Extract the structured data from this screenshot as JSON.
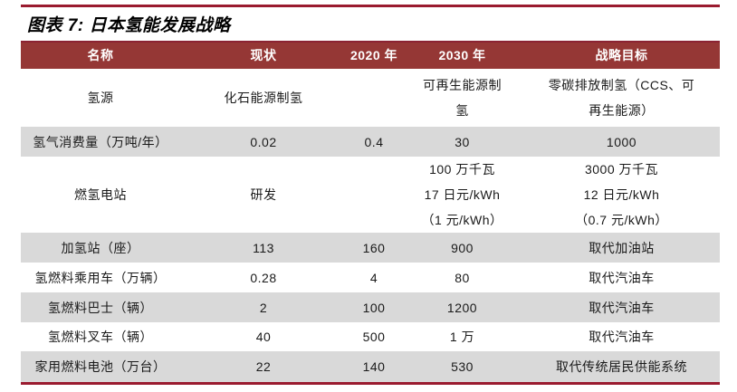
{
  "page": {
    "title": "图表 7: 日本氢能发展战略"
  },
  "colors": {
    "header_bg_red": "#953735",
    "rule_red": "#9a1b2f",
    "alt_row_gray": "#d9d9d9",
    "header_text": "#ffffff",
    "body_text": "#1a1a1a"
  },
  "table": {
    "headers": [
      "名称",
      "现状",
      "2020 年",
      "2030 年",
      "战略目标"
    ],
    "rows": [
      {
        "cells": [
          "氢源",
          "化石能源制氢",
          "",
          "可再生能源制\n氢",
          "零碳排放制氢（CCS、可\n再生能源）"
        ]
      },
      {
        "cells": [
          "氢气消费量（万吨/年）",
          "0.02",
          "0.4",
          "30",
          "1000"
        ]
      },
      {
        "cells": [
          "燃氢电站",
          "研发",
          "",
          "100 万千瓦\n17 日元/kWh\n（1 元/kWh）",
          "3000 万千瓦\n12 日元/kWh\n（0.7 元/kWh）"
        ]
      },
      {
        "cells": [
          "加氢站（座）",
          "113",
          "160",
          "900",
          "取代加油站"
        ]
      },
      {
        "cells": [
          "氢燃料乘用车（万辆）",
          "0.28",
          "4",
          "80",
          "取代汽油车"
        ]
      },
      {
        "cells": [
          "氢燃料巴士（辆）",
          "2",
          "100",
          "1200",
          "取代汽油车"
        ]
      },
      {
        "cells": [
          "氢燃料叉车（辆）",
          "40",
          "500",
          "1 万",
          "取代汽油车"
        ]
      },
      {
        "cells": [
          "家用燃料电池（万台）",
          "22",
          "140",
          "530",
          "取代传统居民供能系统"
        ]
      }
    ]
  }
}
